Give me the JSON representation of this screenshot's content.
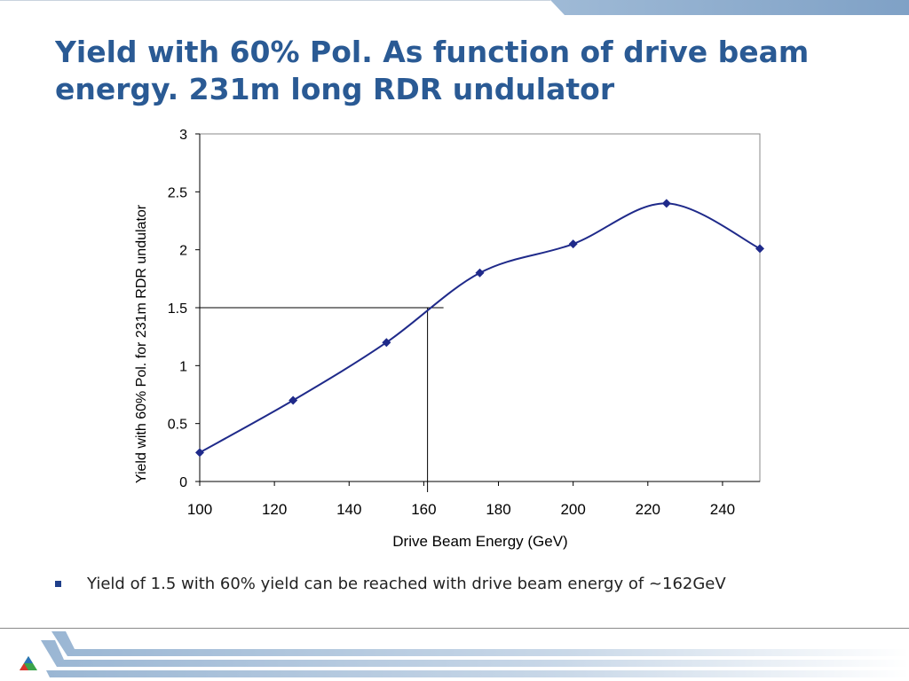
{
  "slide": {
    "title": "Yield with 60% Pol. As function of drive beam\nenergy.  231m long RDR undulator",
    "bullet": "Yield of 1.5 with 60% yield can be reached with drive beam energy of ~162GeV"
  },
  "chart_data": {
    "type": "line",
    "title": "",
    "xlabel": "Drive Beam Energy (GeV)",
    "ylabel": "Yield with 60% Pol. for 231m RDR undulator",
    "xlim": [
      100,
      250
    ],
    "ylim": [
      0,
      3
    ],
    "xticks": [
      100,
      120,
      140,
      160,
      180,
      200,
      220,
      240
    ],
    "yticks": [
      "0",
      "0.5",
      "1",
      "1.5",
      "2",
      "2.5",
      "3"
    ],
    "series": [
      {
        "x": [
          100,
          125,
          150,
          175,
          200,
          225,
          250
        ],
        "y": [
          0.25,
          0.7,
          1.2,
          1.8,
          2.05,
          2.4,
          2.01
        ],
        "color": "#1f2a8a",
        "marker": "diamond",
        "smooth": true
      }
    ],
    "reference_point": {
      "x": 161,
      "y": 1.5
    },
    "grid": false,
    "legend": "none"
  },
  "colors": {
    "title": "#2a5a94",
    "series": "#1f2a8a",
    "bullet": "#1f3f8a"
  },
  "footer": {
    "logo_icon": "triangle-logo-icon"
  }
}
